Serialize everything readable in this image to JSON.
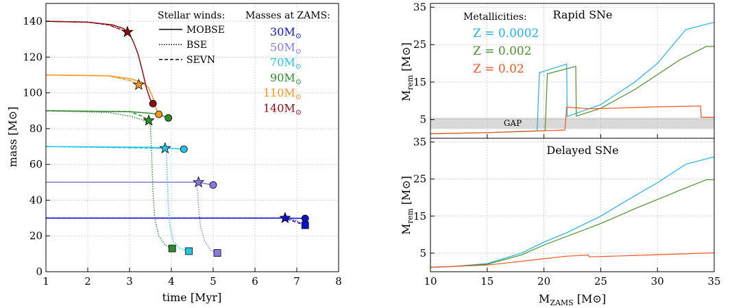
{
  "chart_data": [
    {
      "type": "line",
      "xlabel": "time [Myr]",
      "ylabel": "mass [M⊙]",
      "xlim": [
        1,
        8
      ],
      "ylim": [
        0,
        150
      ],
      "xticks": [
        1,
        2,
        3,
        4,
        5,
        6,
        7,
        8
      ],
      "yticks": [
        0,
        20,
        40,
        60,
        80,
        100,
        120,
        140
      ],
      "grid": true,
      "legend_winds": {
        "title": "Stellar winds:",
        "entries": [
          {
            "label": "MOBSE",
            "style": "solid"
          },
          {
            "label": "BSE",
            "style": "dotted"
          },
          {
            "label": "SEVN",
            "style": "dashed"
          }
        ]
      },
      "legend_masses": {
        "title": "Masses at ZAMS:",
        "entries": [
          {
            "label": "30",
            "color": "#0d12c9"
          },
          {
            "label": "50",
            "color": "#8878de"
          },
          {
            "label": "70",
            "color": "#22c5e3"
          },
          {
            "label": "90",
            "color": "#2e8b2e"
          },
          {
            "label": "110",
            "color": "#f5961e"
          },
          {
            "label": "140",
            "color": "#8b0c14"
          }
        ],
        "unit": "M"
      },
      "series": [
        {
          "mzams": 30,
          "color": "#0d12c9",
          "mobse": [
            [
              1,
              30
            ],
            [
              6.5,
              30
            ],
            [
              6.75,
              30
            ],
            [
              7.2,
              29.8
            ]
          ],
          "bse": [
            [
              1,
              30
            ],
            [
              6.5,
              30
            ],
            [
              6.75,
              30
            ],
            [
              7.0,
              28.5
            ],
            [
              7.2,
              26
            ]
          ],
          "sevn": [
            [
              1,
              30
            ],
            [
              6.7,
              30
            ],
            [
              7.2,
              26
            ]
          ],
          "star": [
            6.72,
            30
          ],
          "circle": [
            7.2,
            29.8
          ],
          "square": [
            7.2,
            26
          ]
        },
        {
          "mzams": 50,
          "color": "#8878de",
          "mobse": [
            [
              1,
              50
            ],
            [
              4.6,
              50
            ],
            [
              4.68,
              49.8
            ],
            [
              5.0,
              48.5
            ]
          ],
          "bse": [
            [
              1,
              50
            ],
            [
              4.6,
              50
            ],
            [
              4.63,
              44
            ],
            [
              4.66,
              33
            ],
            [
              4.7,
              25
            ],
            [
              4.8,
              17
            ],
            [
              4.95,
              12
            ],
            [
              5.1,
              10.5
            ]
          ],
          "sevn": [
            [
              1,
              50
            ],
            [
              4.65,
              50
            ]
          ],
          "star": [
            4.65,
            50
          ],
          "circle": [
            5.0,
            48.5
          ],
          "square": [
            5.1,
            10.5
          ]
        },
        {
          "mzams": 70,
          "color": "#22c5e3",
          "mobse": [
            [
              1,
              70
            ],
            [
              3.5,
              69.6
            ],
            [
              3.8,
              69.2
            ],
            [
              4.0,
              69
            ],
            [
              4.3,
              68.5
            ]
          ],
          "bse": [
            [
              1,
              70
            ],
            [
              3.88,
              69
            ],
            [
              3.9,
              55
            ],
            [
              3.93,
              36
            ],
            [
              3.97,
              25
            ],
            [
              4.05,
              17
            ],
            [
              4.2,
              13
            ],
            [
              4.42,
              11.5
            ]
          ],
          "sevn": [
            [
              1,
              70
            ],
            [
              3.85,
              69
            ]
          ],
          "star": [
            3.85,
            69
          ],
          "circle": [
            4.3,
            68.5
          ],
          "square": [
            4.42,
            11.5
          ]
        },
        {
          "mzams": 90,
          "color": "#2e8b2e",
          "mobse": [
            [
              1,
              90
            ],
            [
              3.0,
              89.5
            ],
            [
              3.55,
              88.5
            ],
            [
              3.75,
              87.5
            ],
            [
              3.93,
              86
            ]
          ],
          "bse": [
            [
              1,
              90
            ],
            [
              2.5,
              89
            ],
            [
              3.0,
              87
            ],
            [
              3.3,
              85
            ],
            [
              3.5,
              82
            ],
            [
              3.53,
              65
            ],
            [
              3.56,
              45
            ],
            [
              3.6,
              30
            ],
            [
              3.7,
              20
            ],
            [
              3.85,
              15
            ],
            [
              4.02,
              13
            ]
          ],
          "sevn": [
            [
              1,
              90
            ],
            [
              3.0,
              89.5
            ],
            [
              3.3,
              87
            ],
            [
              3.46,
              84.5
            ]
          ],
          "star": [
            3.46,
            84.5
          ],
          "circle": [
            3.93,
            86
          ],
          "square": [
            4.02,
            13
          ]
        },
        {
          "mzams": 110,
          "color": "#f5961e",
          "mobse": [
            [
              1,
              110
            ],
            [
              2.5,
              109.5
            ],
            [
              3.0,
              108
            ],
            [
              3.3,
              106
            ],
            [
              3.45,
              103
            ],
            [
              3.55,
              98
            ],
            [
              3.62,
              92
            ],
            [
              3.7,
              88
            ]
          ],
          "bse": [
            [
              1,
              110
            ],
            [
              2.5,
              109.5
            ],
            [
              3.0,
              107
            ],
            [
              3.22,
              104.5
            ]
          ],
          "sevn": [
            [
              1,
              110
            ],
            [
              2.5,
              109.5
            ],
            [
              3.0,
              107
            ],
            [
              3.22,
              104.5
            ]
          ],
          "star": [
            3.22,
            104.5
          ],
          "circle": [
            3.7,
            88
          ],
          "square": null
        },
        {
          "mzams": 140,
          "color": "#8b0c14",
          "mobse": [
            [
              1,
              140
            ],
            [
              2.0,
              139.5
            ],
            [
              2.6,
              138
            ],
            [
              2.85,
              136
            ],
            [
              3.0,
              133
            ],
            [
              3.1,
              128
            ],
            [
              3.2,
              122
            ],
            [
              3.3,
              113
            ],
            [
              3.4,
              103
            ],
            [
              3.5,
              96
            ],
            [
              3.56,
              94
            ]
          ],
          "bse": [
            [
              1,
              140
            ],
            [
              2.0,
              139.5
            ],
            [
              2.5,
              138
            ],
            [
              2.95,
              134
            ]
          ],
          "sevn": [
            [
              1,
              140
            ],
            [
              2.0,
              139.5
            ],
            [
              2.5,
              138
            ],
            [
              2.95,
              134
            ]
          ],
          "star": [
            2.95,
            134
          ],
          "circle": [
            3.56,
            94
          ],
          "square": null
        }
      ]
    },
    {
      "type": "line",
      "title": "Rapid SNe",
      "ylabel": "M_rem [M⊙]",
      "xlim": [
        10,
        35
      ],
      "ylim": [
        0,
        36
      ],
      "yticks": [
        5,
        15,
        25,
        35
      ],
      "grid": true,
      "gap": {
        "label": "GAP",
        "from": 2.5,
        "to": 5.5
      },
      "legend_title": "Metallicities:",
      "series": [
        {
          "name": "Z = 0.0002",
          "color": "#1fb0e8",
          "points": [
            [
              10,
              1.2
            ],
            [
              15,
              1.5
            ],
            [
              19.4,
              2.0
            ],
            [
              19.6,
              17.5
            ],
            [
              22,
              19.8
            ],
            [
              22.05,
              5.8
            ],
            [
              25,
              9
            ],
            [
              28,
              15
            ],
            [
              30,
              20
            ],
            [
              32.5,
              29
            ],
            [
              35,
              31
            ]
          ]
        },
        {
          "name": "Z = 0.002",
          "color": "#4a8f28",
          "points": [
            [
              10,
              1.2
            ],
            [
              15,
              1.5
            ],
            [
              20.1,
              2.0
            ],
            [
              20.3,
              17.2
            ],
            [
              22.8,
              19.2
            ],
            [
              22.85,
              5.9
            ],
            [
              25,
              8
            ],
            [
              28,
              13
            ],
            [
              30,
              17
            ],
            [
              32,
              21
            ],
            [
              34.3,
              24.5
            ],
            [
              35,
              24.5
            ]
          ]
        },
        {
          "name": "Z = 0.02",
          "color": "#f2551e",
          "points": [
            [
              10,
              1.2
            ],
            [
              15,
              1.5
            ],
            [
              21.85,
              2.2
            ],
            [
              22,
              8.3
            ],
            [
              24,
              7.9
            ],
            [
              26,
              8.0
            ],
            [
              28,
              8.2
            ],
            [
              30,
              8.4
            ],
            [
              33.8,
              8.6
            ],
            [
              33.85,
              5.6
            ],
            [
              35,
              5.6
            ]
          ]
        }
      ]
    },
    {
      "type": "line",
      "title": "Delayed SNe",
      "xlabel": "M_ZAMS [M⊙]",
      "ylabel": "M_rem [M⊙]",
      "xlim": [
        10,
        35
      ],
      "ylim": [
        0,
        36
      ],
      "xticks": [
        10,
        15,
        20,
        25,
        30,
        35
      ],
      "yticks": [
        5,
        15,
        25,
        35
      ],
      "grid": true,
      "series": [
        {
          "color": "#1fb0e8",
          "points": [
            [
              10,
              1.2
            ],
            [
              12,
              1.4
            ],
            [
              15,
              2.2
            ],
            [
              18,
              5
            ],
            [
              20,
              8
            ],
            [
              22,
              10.5
            ],
            [
              25,
              15
            ],
            [
              28,
              20.5
            ],
            [
              30,
              24
            ],
            [
              32.5,
              29
            ],
            [
              35,
              31
            ]
          ]
        },
        {
          "color": "#4a8f28",
          "points": [
            [
              10,
              1.2
            ],
            [
              12,
              1.4
            ],
            [
              15,
              2
            ],
            [
              18,
              4.5
            ],
            [
              20,
              7.2
            ],
            [
              22,
              9.5
            ],
            [
              25,
              13
            ],
            [
              28,
              17
            ],
            [
              30,
              19.5
            ],
            [
              32,
              22
            ],
            [
              34.3,
              24.8
            ],
            [
              35,
              24.8
            ]
          ]
        },
        {
          "color": "#f2551e",
          "points": [
            [
              10,
              1.2
            ],
            [
              15,
              1.8
            ],
            [
              18,
              2.8
            ],
            [
              20,
              3.5
            ],
            [
              22,
              4.2
            ],
            [
              23.9,
              4.5
            ],
            [
              24,
              4.0
            ],
            [
              26,
              4.2
            ],
            [
              30,
              4.6
            ],
            [
              35,
              5.1
            ]
          ]
        }
      ]
    }
  ]
}
